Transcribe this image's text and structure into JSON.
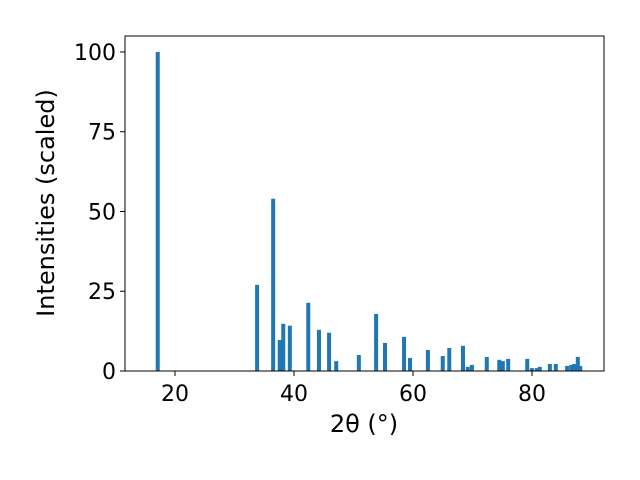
{
  "chart_data": {
    "type": "bar",
    "xlabel": "2θ (°)",
    "ylabel": "Intensities (scaled)",
    "x": [
      17.1,
      33.8,
      36.5,
      37.6,
      38.2,
      39.3,
      42.4,
      44.2,
      45.9,
      47.1,
      50.9,
      53.8,
      55.3,
      58.5,
      59.5,
      62.5,
      65.0,
      66.1,
      68.4,
      69.2,
      69.9,
      72.4,
      74.5,
      75.1,
      76.0,
      79.2,
      80.0,
      80.8,
      81.3,
      83.0,
      84.0,
      85.9,
      86.6,
      87.1,
      87.7,
      88.1
    ],
    "values": [
      100,
      27,
      54,
      9.7,
      14.8,
      14.2,
      21.4,
      12.9,
      12,
      3.1,
      5,
      17.9,
      8.8,
      10.7,
      4.1,
      6.6,
      4.7,
      7.2,
      7.9,
      1.3,
      1.9,
      4.4,
      3.5,
      3.1,
      3.8,
      3.8,
      0.9,
      0.9,
      1.3,
      2.2,
      2.2,
      1.6,
      1.9,
      2.2,
      4.4,
      1.6
    ],
    "color": "#1f77b4",
    "xlim": [
      11.6,
      92.1
    ],
    "xticks": [
      20,
      40,
      60,
      80
    ],
    "ylim": [
      0,
      105
    ],
    "yticks": [
      0,
      25,
      50,
      75,
      100
    ],
    "grid": false
  }
}
